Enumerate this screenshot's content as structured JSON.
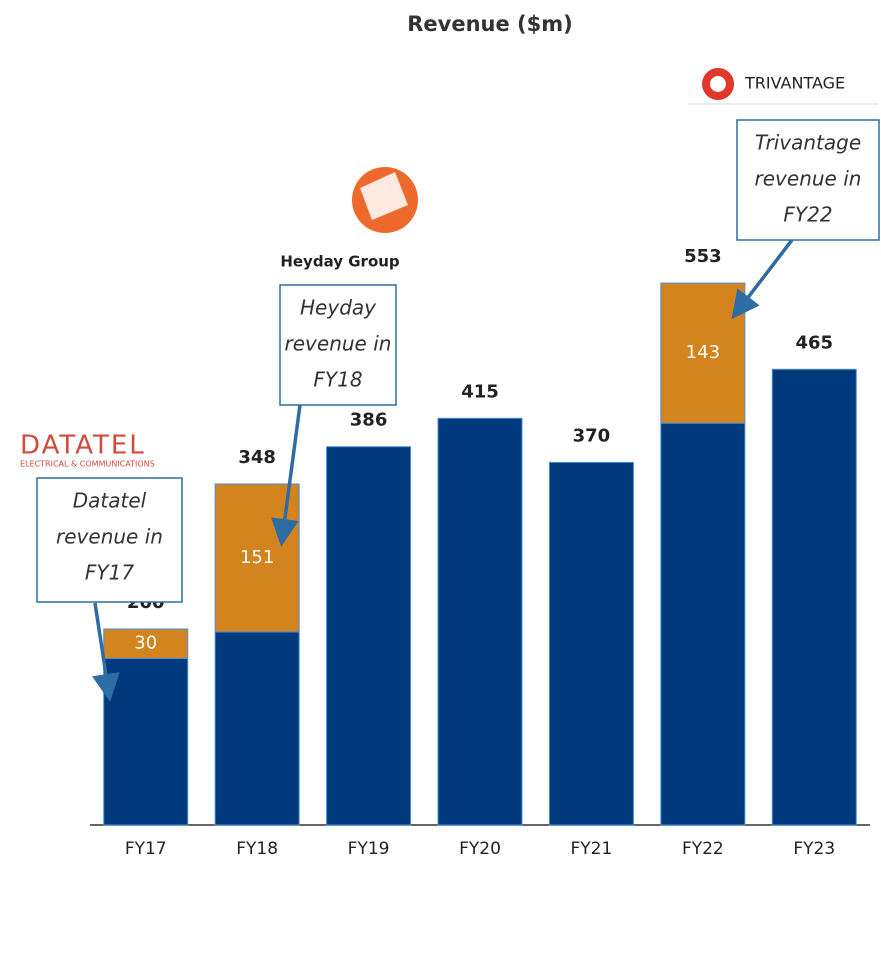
{
  "chart_data": {
    "type": "stacked-bar",
    "title": "Revenue ($m)",
    "categories": [
      "FY17",
      "FY18",
      "FY19",
      "FY20",
      "FY21",
      "FY22",
      "FY23"
    ],
    "series": [
      {
        "color": "#003a7d",
        "values": [
          170,
          197,
          386,
          415,
          370,
          410,
          465
        ]
      },
      {
        "color": "#d4841e",
        "values": [
          30,
          151,
          null,
          null,
          null,
          143,
          null
        ]
      }
    ],
    "totals": [
      200,
      348,
      386,
      415,
      370,
      553,
      465
    ],
    "ylim": [
      0,
      600
    ],
    "annotations": [
      {
        "lines": [
          "Datatel",
          "revenue in",
          "FY17"
        ],
        "logo": [
          "DATATEL",
          "ELECTRICAL & COMMUNICATIONS"
        ]
      },
      {
        "lines": [
          "Heyday",
          "revenue in",
          "FY18"
        ],
        "logo": [
          "Heyday Group"
        ]
      },
      {
        "lines": [
          "Trivantage",
          "revenue in",
          "FY22"
        ],
        "logo": [
          "TRIVANTAGE"
        ]
      }
    ]
  }
}
